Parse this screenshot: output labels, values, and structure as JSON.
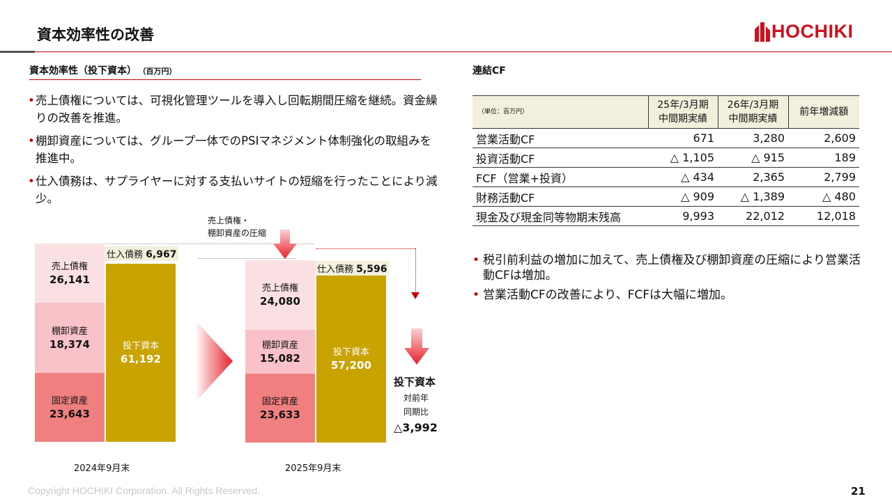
{
  "header": {
    "title": "資本効率性の改善",
    "logo_text": "HOCHIKI"
  },
  "left": {
    "section_title": "資本効率性（投下資本）",
    "unit": "（百万円）",
    "bullets": [
      "売上債権については、可視化管理ツールを導入し回転期間圧縮を継続。資金繰りの改善を推進。",
      "棚卸資産については、グループ一体でのPSIマネジメント体制強化の取組みを推進中。",
      "仕入債務は、サプライヤーに対する支払いサイトの短縮を行ったことにより減少。"
    ]
  },
  "chart_data": {
    "type": "bar",
    "categories": [
      "2024年9月末",
      "2025年9月末"
    ],
    "series": [
      {
        "name": "固定資産",
        "values": [
          23643,
          23633
        ]
      },
      {
        "name": "棚卸資産",
        "values": [
          18374,
          15082
        ]
      },
      {
        "name": "売上債権",
        "values": [
          26141,
          24080
        ]
      },
      {
        "name": "仕入債務",
        "values": [
          6967,
          5596
        ]
      },
      {
        "name": "投下資本",
        "values": [
          61192,
          57200
        ]
      }
    ],
    "labels": {
      "receivables": "売上債権",
      "inventory": "棚卸資産",
      "fixed": "固定資産",
      "payables": "仕入債務",
      "capital": "投下資本"
    },
    "display_values": {
      "receivables": [
        "26,141",
        "24,080"
      ],
      "inventory": [
        "18,374",
        "15,082"
      ],
      "fixed": [
        "23,643",
        "23,633"
      ],
      "payables": [
        "6,967",
        "5,596"
      ],
      "capital": [
        "61,192",
        "57,200"
      ]
    },
    "annotation_compression": [
      "売上債権・",
      "棚卸資産の圧縮"
    ],
    "result": {
      "title": "投下資本",
      "sub": [
        "対前年",
        "同期比"
      ],
      "value": "△3,992"
    },
    "colors": {
      "receivables": "#fbe0e3",
      "inventory": "#f9c2c8",
      "fixed": "#f08080",
      "capital": "#c9a300",
      "payables_bg": "#f2f0dd",
      "arrow": "#e8202a"
    }
  },
  "right": {
    "section_title": "連結CF",
    "table": {
      "unit": "（単位：百万円）",
      "columns": [
        "25年/3月期\n中間期実績",
        "26年/3月期\n中間期実績",
        "前年増減額"
      ],
      "rows": [
        {
          "label": "営業活動CF",
          "values": [
            "671",
            "3,280",
            "2,609"
          ]
        },
        {
          "label": "投資活動CF",
          "values": [
            "△ 1,105",
            "△ 915",
            "189"
          ]
        },
        {
          "label": "FCF（営業+投資）",
          "values": [
            "△ 434",
            "2,365",
            "2,799"
          ]
        },
        {
          "label": "財務活動CF",
          "values": [
            "△ 909",
            "△ 1,389",
            "△ 480"
          ]
        },
        {
          "label": "現金及び現金同等物期末残高",
          "values": [
            "9,993",
            "22,012",
            "12,018"
          ]
        }
      ]
    },
    "bullets": [
      "税引前利益の増加に加えて、売上債権及び棚卸資産の圧縮により営業活動CFは増加。",
      "営業活動CFの改善により、FCFは大幅に増加。"
    ]
  },
  "footer": {
    "copyright": "Copyright HOCHIKI Corporation. All Rights Reserved.",
    "page": "21"
  }
}
